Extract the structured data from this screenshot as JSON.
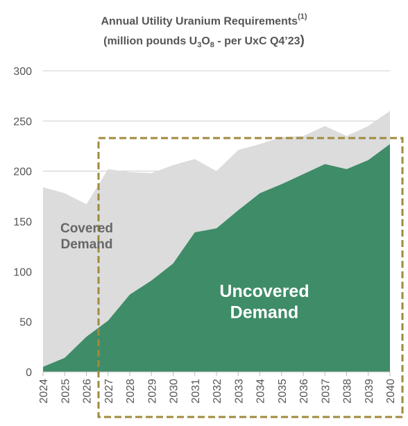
{
  "title": {
    "line1_text": "Annual Utility Uranium Requirements",
    "line1_sup": "(1)",
    "line2_prefix": "(million pounds U",
    "line2_sub1": "3",
    "line2_mid": "O",
    "line2_sub2": "8",
    "line2_suffix": " - per UxC Q4’23",
    "line2_close": ")"
  },
  "chart_data": {
    "type": "area",
    "title": "Annual Utility Uranium Requirements (1) (million pounds U3O8 - per UxC Q4’23)",
    "xlabel": "",
    "ylabel": "",
    "ylim": [
      0,
      300
    ],
    "yticks": [
      "0",
      "50",
      "100",
      "150",
      "200",
      "250",
      "300"
    ],
    "categories": [
      "2024",
      "2025",
      "2026",
      "2027",
      "2028",
      "2029",
      "2030",
      "2031",
      "2032",
      "2033",
      "2034",
      "2035",
      "2036",
      "2037",
      "2038",
      "2039",
      "2040"
    ],
    "series": [
      {
        "name": "Uncovered Demand",
        "values": [
          5,
          14,
          35,
          51,
          77,
          91,
          108,
          139,
          143,
          161,
          178,
          187,
          197,
          207,
          202,
          211,
          227
        ]
      },
      {
        "name": "Covered Demand",
        "values": [
          184,
          178,
          167,
          202,
          199,
          198,
          206,
          212,
          200,
          221,
          227,
          234,
          235,
          245,
          235,
          245,
          260
        ]
      }
    ],
    "grid": true,
    "legend": "inline-labels",
    "colors": {
      "uncovered": "#3f8c68",
      "covered": "#dcdcdc",
      "highlight_box": "#a08a3c",
      "grid": "#cccccc"
    }
  }
}
